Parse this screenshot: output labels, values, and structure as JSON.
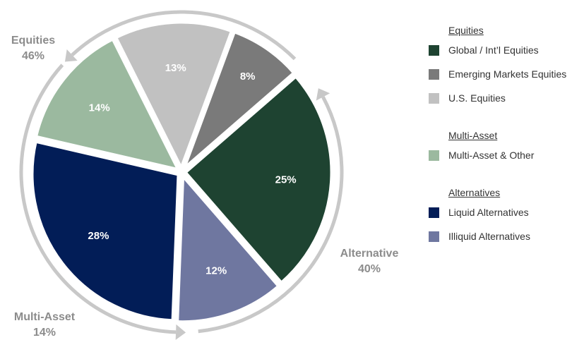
{
  "chart_data": {
    "type": "pie",
    "slices": [
      {
        "label": "Global / Int'l Equities",
        "value": 25,
        "display": "25%",
        "color": "#1e4331",
        "group": "Equities"
      },
      {
        "label": "Illiquid Alternatives",
        "value": 12,
        "display": "12%",
        "color": "#6f77a0",
        "group": "Alternatives"
      },
      {
        "label": "Liquid Alternatives",
        "value": 28,
        "display": "28%",
        "color": "#021d57",
        "group": "Alternatives"
      },
      {
        "label": "Multi-Asset & Other",
        "value": 14,
        "display": "14%",
        "color": "#9bb99f",
        "group": "Multi-Asset"
      },
      {
        "label": "U.S. Equities",
        "value": 13,
        "display": "13%",
        "color": "#c1c1c1",
        "group": "Equities"
      },
      {
        "label": "Emerging Markets Equities",
        "value": 8,
        "display": "8%",
        "color": "#7a7a7a",
        "group": "Equities"
      }
    ],
    "group_labels": [
      {
        "name": "Equities",
        "value": "46%"
      },
      {
        "name": "Alternative",
        "value": "40%"
      },
      {
        "name": "Multi-Asset",
        "value": "14%"
      }
    ],
    "ring_color": "#c8c8c8",
    "legend_position": "right"
  },
  "legend": {
    "groups": [
      {
        "header": "Equities",
        "items": [
          {
            "label": "Global / Int’l Equities",
            "color": "#1e4331"
          },
          {
            "label": "Emerging Markets Equities",
            "color": "#7a7a7a"
          },
          {
            "label": "U.S. Equities",
            "color": "#c1c1c1"
          }
        ]
      },
      {
        "header": "Multi-Asset",
        "items": [
          {
            "label": "Multi-Asset & Other",
            "color": "#9bb99f"
          }
        ]
      },
      {
        "header": "Alternatives",
        "items": [
          {
            "label": "Liquid Alternatives",
            "color": "#021d57"
          },
          {
            "label": "Illiquid Alternatives",
            "color": "#6f77a0"
          }
        ]
      }
    ]
  }
}
